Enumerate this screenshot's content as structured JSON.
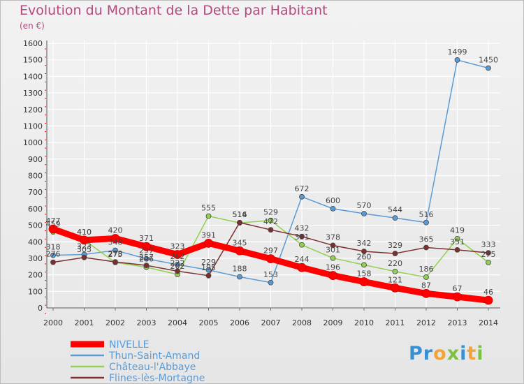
{
  "title": "Evolution du Montant de la Dette par Habitant",
  "subtitle": "(en €)",
  "logo_text": "Proxiti",
  "colors": {
    "title": "#b5487f",
    "grid": "#ffffff",
    "axis": "#555555"
  },
  "chart_data": {
    "type": "line",
    "title": "Evolution du Montant de la Dette par Habitant",
    "subtitle": "(en €)",
    "xlabel": "",
    "ylabel": "",
    "x": [
      2000,
      2001,
      2002,
      2003,
      2004,
      2005,
      2006,
      2007,
      2008,
      2009,
      2010,
      2011,
      2012,
      2013,
      2014
    ],
    "ylim": [
      0,
      1600
    ],
    "yticks": [
      0,
      100,
      200,
      300,
      400,
      500,
      600,
      700,
      800,
      900,
      1000,
      1100,
      1200,
      1300,
      1400,
      1500,
      1600
    ],
    "grid": true,
    "legend_position": "bottom-left",
    "series": [
      {
        "name": "NIVELLE",
        "color": "#ff0000",
        "lw": 9,
        "dot": 6,
        "label_color": "#444444",
        "values": [
          477,
          410,
          420,
          371,
          323,
          391,
          345,
          297,
          244,
          196,
          158,
          121,
          87,
          67,
          46
        ]
      },
      {
        "name": "Thun-Saint-Amand",
        "color": "#5b9bd5",
        "lw": 1.5,
        "dot": 3.5,
        "label_color": "#444444",
        "values": [
          318,
          323,
          348,
          297,
          262,
          229,
          188,
          153,
          672,
          600,
          570,
          544,
          516,
          1499,
          1450
        ]
      },
      {
        "name": "Château-l'Abbaye",
        "color": "#92d050",
        "lw": 1.5,
        "dot": 3.5,
        "label_color": "#444444",
        "values": [
          459,
          410,
          275,
          246,
          202,
          555,
          514,
          529,
          381,
          301,
          260,
          220,
          186,
          419,
          275
        ]
      },
      {
        "name": "Flines-lès-Mortagne",
        "color": "#7b2f2f",
        "lw": 1.5,
        "dot": 3.5,
        "label_color": "#444444",
        "values": [
          276,
          305,
          278,
          257,
          222,
          195,
          516,
          472,
          432,
          378,
          342,
          329,
          365,
          351,
          333
        ]
      }
    ]
  }
}
